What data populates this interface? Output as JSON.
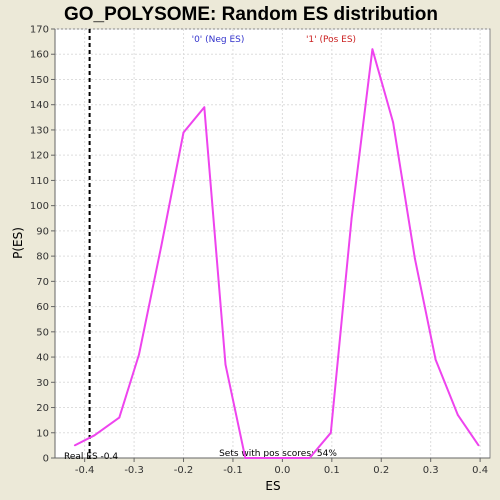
{
  "chart_data": {
    "type": "line",
    "title": "GO_POLYSOME: Random ES distribution",
    "xlabel": "ES",
    "ylabel": "P(ES)",
    "xlim": [
      -0.46,
      0.42
    ],
    "ylim": [
      0,
      170
    ],
    "x_ticks": [
      -0.4,
      -0.3,
      -0.2,
      -0.1,
      0.0,
      0.1,
      0.2,
      0.3,
      0.4
    ],
    "x_tick_labels": [
      "-0.4",
      "-0.3",
      "-0.2",
      "-0.1",
      "0.0",
      "0.1",
      "0.2",
      "0.3",
      "0.4"
    ],
    "y_ticks": [
      0,
      10,
      20,
      30,
      40,
      50,
      60,
      70,
      80,
      90,
      100,
      110,
      120,
      130,
      140,
      150,
      160,
      170
    ],
    "y_tick_labels": [
      "0",
      "10",
      "20",
      "30",
      "40",
      "50",
      "60",
      "70",
      "80",
      "90",
      "100",
      "110",
      "120",
      "130",
      "140",
      "150",
      "160",
      "170"
    ],
    "grid": true,
    "series": [
      {
        "color": "#ee44ee",
        "x": [
          -0.42,
          -0.38,
          -0.33,
          -0.29,
          -0.245,
          -0.2,
          -0.158,
          -0.115,
          -0.075,
          -0.03,
          0.01,
          0.055,
          0.098,
          0.14,
          0.182,
          0.224,
          0.268,
          0.31,
          0.355,
          0.397
        ],
        "y": [
          5,
          9,
          16,
          41,
          84,
          129,
          139,
          37,
          0,
          0,
          0,
          0,
          10,
          95,
          162,
          133,
          79,
          39,
          17,
          5
        ]
      }
    ],
    "real_es": {
      "x": -0.39,
      "label": "Real ES -0.4",
      "color": "#000000"
    },
    "annotations": {
      "neg_label": "'0' (Neg ES)",
      "neg_color": "#3333cc",
      "pos_label": "'1' (Pos ES)",
      "pos_color": "#cc2222",
      "sets_label": "Sets with pos scores: 54%"
    },
    "plot_background": "#ffffff",
    "page_background": "#ece9d8",
    "grid_color": "#dddddd"
  }
}
